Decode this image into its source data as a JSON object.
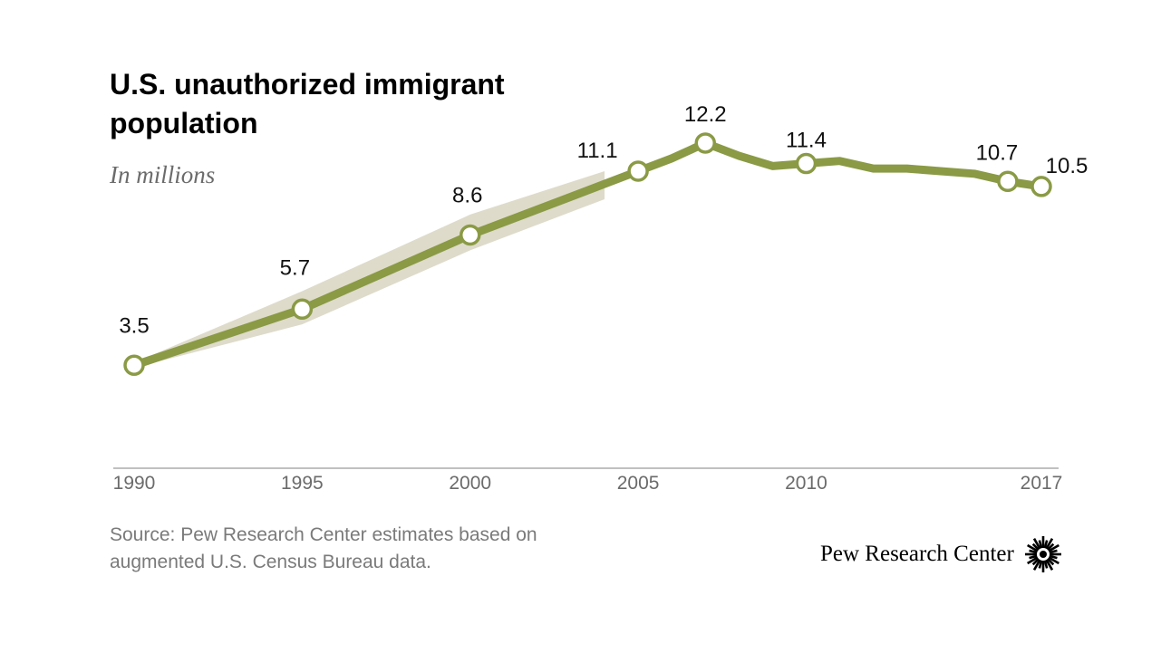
{
  "title": "U.S. unauthorized immigrant population",
  "subtitle": "In millions",
  "source": "Source: Pew Research Center estimates based on augmented U.S. Census Bureau data.",
  "brand": "Pew Research Center",
  "colors": {
    "line": "#8a9a45",
    "band": "#dedbcb",
    "axis": "#9a9a9a",
    "tick_text": "#6b6b6b",
    "label_text": "#111111"
  },
  "chart_data": {
    "type": "line",
    "title": "U.S. unauthorized immigrant population",
    "subtitle": "In millions",
    "xlabel": "",
    "ylabel": "In millions",
    "x_ticks": [
      1990,
      1995,
      2000,
      2005,
      2010,
      2017
    ],
    "xlim": [
      1990,
      2017
    ],
    "ylim": [
      0,
      12.5
    ],
    "series": [
      {
        "name": "Unauthorized immigrant population",
        "x": [
          1990,
          1995,
          2000,
          2004,
          2005,
          2006,
          2007,
          2008,
          2009,
          2010,
          2011,
          2012,
          2013,
          2014,
          2015,
          2016,
          2017
        ],
        "values": [
          3.5,
          5.7,
          8.6,
          10.6,
          11.1,
          11.6,
          12.2,
          11.7,
          11.3,
          11.4,
          11.5,
          11.2,
          11.2,
          11.1,
          11.0,
          10.7,
          10.5
        ]
      }
    ],
    "confidence_band": {
      "x": [
        1990,
        1995,
        2000,
        2004
      ],
      "upper": [
        3.6,
        6.4,
        9.4,
        11.1
      ],
      "lower": [
        3.4,
        5.1,
        8.0,
        10.0
      ]
    },
    "labeled_points": [
      {
        "x": 1990,
        "value": 3.5,
        "label": "3.5"
      },
      {
        "x": 1995,
        "value": 5.7,
        "label": "5.7"
      },
      {
        "x": 2000,
        "value": 8.6,
        "label": "8.6"
      },
      {
        "x": 2005,
        "value": 11.1,
        "label": "11.1"
      },
      {
        "x": 2007,
        "value": 12.2,
        "label": "12.2"
      },
      {
        "x": 2010,
        "value": 11.4,
        "label": "11.4"
      },
      {
        "x": 2016,
        "value": 10.7,
        "label": "10.7"
      },
      {
        "x": 2017,
        "value": 10.5,
        "label": "10.5"
      }
    ]
  }
}
